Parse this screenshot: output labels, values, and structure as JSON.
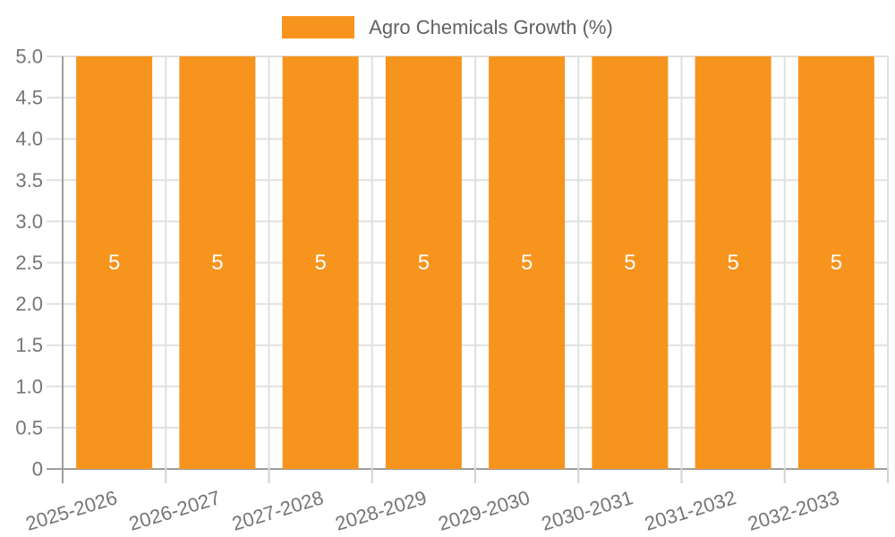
{
  "chart_data": {
    "type": "bar",
    "title": "Agro Chemicals Growth (%)",
    "categories": [
      "2025-2026",
      "2026-2027",
      "2027-2028",
      "2028-2029",
      "2029-2030",
      "2030-2031",
      "2031-2032",
      "2032-2033"
    ],
    "series": [
      {
        "name": "Agro Chemicals Growth (%)",
        "values": [
          5,
          5,
          5,
          5,
          5,
          5,
          5,
          5
        ]
      }
    ],
    "bar_labels": [
      "5",
      "5",
      "5",
      "5",
      "5",
      "5",
      "5",
      "5"
    ],
    "xlabel": "",
    "ylabel": "",
    "ylim": [
      0,
      5
    ],
    "yticks": [
      0,
      0.5,
      1,
      1.5,
      2,
      2.5,
      3,
      3.5,
      4,
      4.5,
      5
    ],
    "ytick_labels": [
      "0",
      "0.5",
      "1.0",
      "1.5",
      "2.0",
      "2.5",
      "3.0",
      "3.5",
      "4.0",
      "4.5",
      "5.0"
    ],
    "grid": true,
    "legend_position": "top-center",
    "x_label_rotation_deg": -17,
    "colors": {
      "bar": "#F7941D",
      "grid": "#E0E0E0",
      "axis": "#9E9E9E",
      "below_tick": "#D2D2D2",
      "tick_text": "#757575",
      "legend_text": "#616161",
      "bar_label": "#FFFFFF",
      "background": "#FFFFFF"
    }
  }
}
